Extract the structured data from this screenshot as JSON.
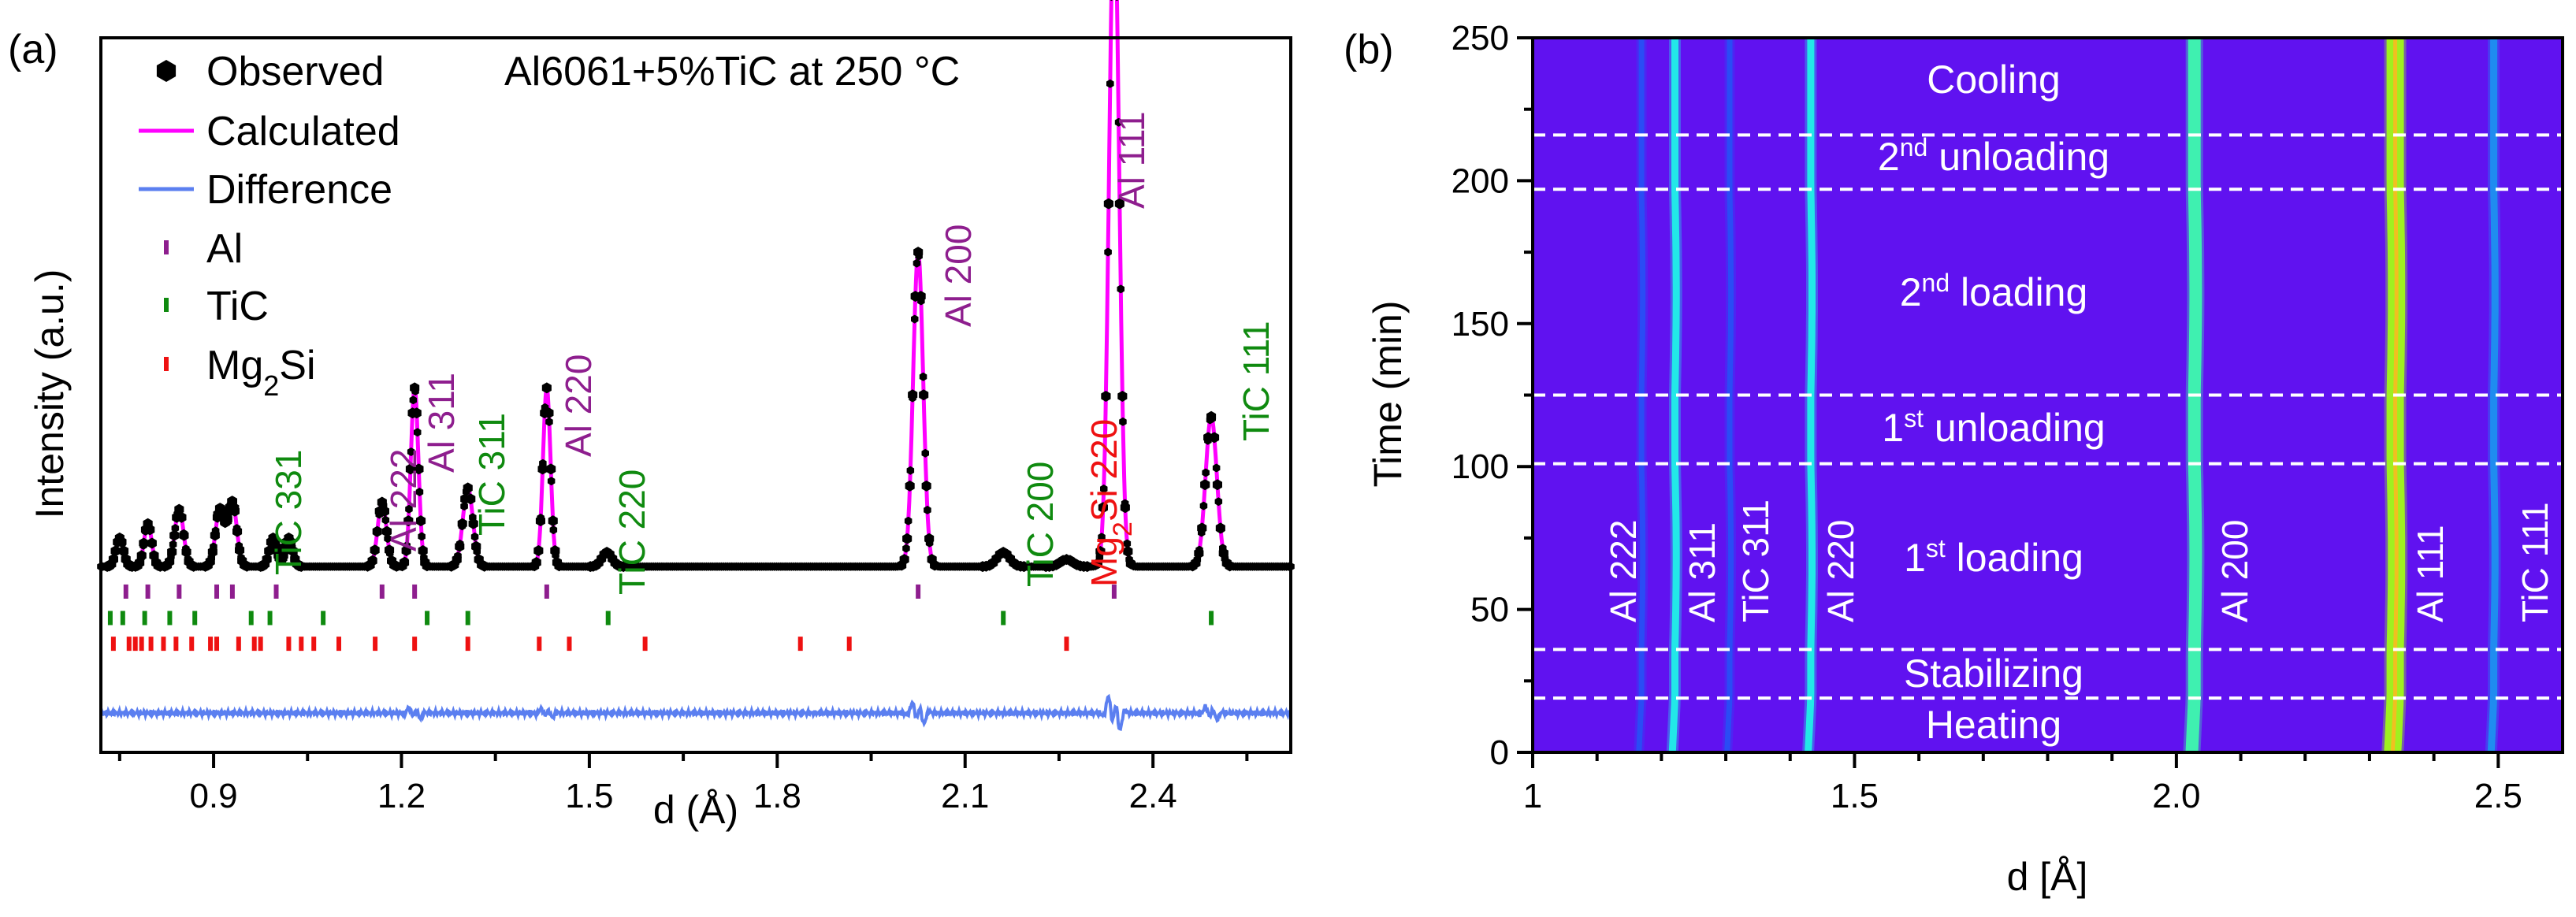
{
  "colors": {
    "observed": "#000000",
    "calculated": "#ff00ff",
    "difference": "#5b7ff0",
    "al": "#8e1e8e",
    "tic": "#0f8a0f",
    "mg2si": "#ee1111",
    "map_background": "#6012f0",
    "guide_line": "#ffffff"
  },
  "panel_a": {
    "panel_label": "(a)",
    "sample_label": "Al6061+5%TiC at 250 °C",
    "ylabel": "Intensity (a.u.)",
    "xlabel": "d (Å)",
    "legend": {
      "observed": "Observed",
      "calculated": "Calculated",
      "difference": "Difference",
      "al": "Al",
      "tic": "TiC",
      "mg2si_main": "Mg",
      "mg2si_sub": "2",
      "mg2si_tail": "Si"
    },
    "peak_labels": {
      "tic331": "TiC 331",
      "al222": "Al 222",
      "al311": "Al 311",
      "tic311": "TiC 311",
      "al220": "Al 220",
      "tic220": "TiC 220",
      "al200": "Al 200",
      "tic200": "TiC 200",
      "mg2si220_main": "Mg",
      "mg2si220_sub": "2",
      "mg2si220_tail": "Si 220",
      "al111": "Al 111",
      "tic111": "TiC 111"
    }
  },
  "panel_b": {
    "panel_label": "(b)",
    "ylabel": "Time (min)",
    "xlabel": "d [Å]",
    "phases": {
      "cooling": "Cooling",
      "unloading2_num": "2",
      "unloading2_sup": "nd",
      "unloading2_text": " unloading",
      "loading2_num": "2",
      "loading2_sup": "nd",
      "loading2_text": " loading",
      "unloading1_num": "1",
      "unloading1_sup": "st",
      "unloading1_text": " unloading",
      "loading1_num": "1",
      "loading1_sup": "st",
      "loading1_text": " loading",
      "stabilizing": "Stabilizing",
      "heating": "Heating"
    },
    "line_labels": {
      "al222": "Al 222",
      "al311": "Al 311",
      "tic311": "TiC 311",
      "al220": "Al 220",
      "al200": "Al 200",
      "al111": "Al 111",
      "tic111": "TiC 111"
    }
  },
  "chart_data": [
    {
      "type": "line",
      "title": "Al6061+5%TiC at 250 °C",
      "xlabel": "d (Å)",
      "ylabel": "Intensity (a.u.)",
      "xlim": [
        0.72,
        2.62
      ],
      "ylim": [
        0,
        100
      ],
      "xticks": [
        0.9,
        1.2,
        1.5,
        1.8,
        2.1,
        2.4
      ],
      "xtick_labels": [
        "0.9",
        "1.2",
        "1.5",
        "1.8",
        "2.1",
        "2.4"
      ],
      "yticks_shown": false,
      "legend_position": "top-left",
      "baseline_intensity": 26,
      "peaks": [
        {
          "d": 0.75,
          "intensity": 4,
          "width": 0.006
        },
        {
          "d": 0.795,
          "intensity": 6,
          "width": 0.006
        },
        {
          "d": 0.845,
          "intensity": 8,
          "width": 0.007
        },
        {
          "d": 0.91,
          "intensity": 8,
          "width": 0.007
        },
        {
          "d": 0.93,
          "intensity": 9,
          "width": 0.007
        },
        {
          "d": 0.995,
          "intensity": 4,
          "width": 0.006
        },
        {
          "d": 1.02,
          "intensity": 4,
          "width": 0.006
        },
        {
          "d": 1.169,
          "intensity": 9,
          "width": 0.007
        },
        {
          "d": 1.221,
          "intensity": 25,
          "width": 0.006
        },
        {
          "d": 1.306,
          "intensity": 11,
          "width": 0.008
        },
        {
          "d": 1.432,
          "intensity": 25,
          "width": 0.006
        },
        {
          "d": 1.528,
          "intensity": 2,
          "width": 0.008
        },
        {
          "d": 2.025,
          "intensity": 44,
          "width": 0.008
        },
        {
          "d": 2.161,
          "intensity": 2,
          "width": 0.01
        },
        {
          "d": 2.262,
          "intensity": 1,
          "width": 0.01
        },
        {
          "d": 2.338,
          "intensity": 93,
          "width": 0.008
        },
        {
          "d": 2.493,
          "intensity": 21,
          "width": 0.009
        }
      ],
      "series": [
        {
          "name": "Observed",
          "style": "hexagon markers"
        },
        {
          "name": "Calculated",
          "style": "line"
        },
        {
          "name": "Difference",
          "style": "line"
        }
      ],
      "difference_features": [
        {
          "d": 1.221,
          "amplitude": 2.5
        },
        {
          "d": 1.432,
          "amplitude": 2
        },
        {
          "d": 2.025,
          "amplitude": 5
        },
        {
          "d": 2.338,
          "amplitude": 8
        },
        {
          "d": 2.493,
          "amplitude": 3
        }
      ],
      "reflection_ticks": {
        "Al": [
          0.76,
          0.795,
          0.845,
          0.905,
          0.93,
          1.0,
          1.169,
          1.221,
          1.432,
          2.025,
          2.338
        ],
        "TiC": [
          0.735,
          0.755,
          0.79,
          0.83,
          0.87,
          0.96,
          0.99,
          1.075,
          1.241,
          1.306,
          1.53,
          2.161,
          2.493
        ],
        "Mg2Si": [
          0.74,
          0.765,
          0.775,
          0.785,
          0.8,
          0.82,
          0.84,
          0.865,
          0.895,
          0.905,
          0.94,
          0.965,
          0.975,
          1.02,
          1.04,
          1.06,
          1.1,
          1.158,
          1.221,
          1.306,
          1.42,
          1.468,
          1.589,
          1.837,
          1.915,
          2.262
        ]
      },
      "peak_annotations": [
        {
          "label": "TiC 331",
          "d": 0.993,
          "series": "TiC"
        },
        {
          "label": "Al 222",
          "d": 1.169,
          "series": "Al"
        },
        {
          "label": "Al 311",
          "d": 1.221,
          "series": "Al"
        },
        {
          "label": "TiC 311",
          "d": 1.306,
          "series": "TiC"
        },
        {
          "label": "Al 220",
          "d": 1.432,
          "series": "Al"
        },
        {
          "label": "TiC 220",
          "d": 1.53,
          "series": "TiC"
        },
        {
          "label": "Al 200",
          "d": 2.025,
          "series": "Al"
        },
        {
          "label": "TiC 200",
          "d": 2.161,
          "series": "TiC"
        },
        {
          "label": "Mg2Si 220",
          "d": 2.262,
          "series": "Mg2Si"
        },
        {
          "label": "Al 111",
          "d": 2.338,
          "series": "Al"
        },
        {
          "label": "TiC 111",
          "d": 2.493,
          "series": "TiC"
        }
      ]
    },
    {
      "type": "heatmap",
      "xlabel": "d [Å]",
      "ylabel": "Time (min)",
      "xlim": [
        1.0,
        2.6
      ],
      "ylim": [
        0,
        250
      ],
      "xticks": [
        1.0,
        1.5,
        2.0,
        2.5
      ],
      "xtick_labels": [
        "1",
        "1.5",
        "2.0",
        "2.5"
      ],
      "yticks": [
        0,
        50,
        100,
        150,
        200,
        250
      ],
      "ytick_labels": [
        "0",
        "50",
        "100",
        "150",
        "200",
        "250"
      ],
      "phase_boundaries_min": [
        19,
        36,
        101,
        125,
        197,
        216
      ],
      "phases": [
        {
          "name": "Heating",
          "start": 0,
          "end": 19
        },
        {
          "name": "Stabilizing",
          "start": 19,
          "end": 36
        },
        {
          "name": "1st loading",
          "start": 36,
          "end": 101
        },
        {
          "name": "1st unloading",
          "start": 101,
          "end": 125
        },
        {
          "name": "2nd loading",
          "start": 125,
          "end": 197
        },
        {
          "name": "2nd unloading",
          "start": 197,
          "end": 216
        },
        {
          "name": "Cooling",
          "start": 216,
          "end": 250
        }
      ],
      "diffraction_lines": [
        {
          "label": "Al 222",
          "d": 1.169,
          "intensity": "low",
          "color": "#2a4cf5"
        },
        {
          "label": "Al 311",
          "d": 1.221,
          "intensity": "medium",
          "color": "#22e8e8"
        },
        {
          "label": "TiC 311",
          "d": 1.306,
          "intensity": "low",
          "color": "#2a4cf5"
        },
        {
          "label": "Al 220",
          "d": 1.432,
          "intensity": "medium",
          "color": "#22e8e8"
        },
        {
          "label": "Al 200",
          "d": 2.028,
          "intensity": "high",
          "color": "#3ff0b0"
        },
        {
          "label": "Al 111",
          "d": 2.34,
          "intensity": "very high",
          "color": "#9ff020"
        },
        {
          "label": "TiC 111",
          "d": 2.493,
          "intensity": "medium",
          "color": "#1f8cf0"
        }
      ]
    }
  ]
}
